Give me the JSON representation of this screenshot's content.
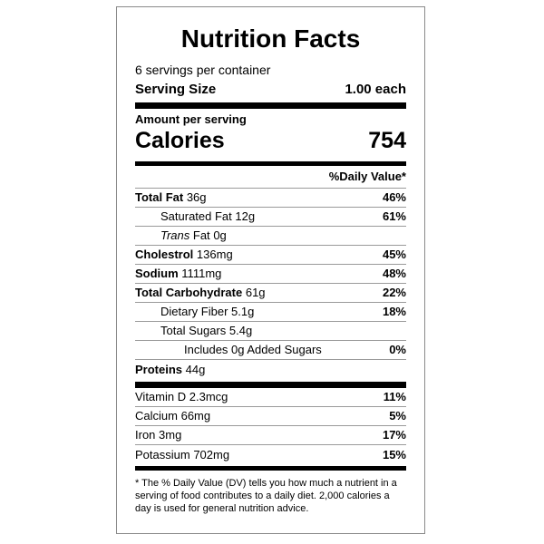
{
  "title": "Nutrition Facts",
  "servings_per_container": "6 servings per container",
  "serving_size": {
    "label": "Serving Size",
    "value": "1.00 each"
  },
  "amount_per_serving": "Amount per serving",
  "calories": {
    "label": "Calories",
    "value": "754"
  },
  "daily_value_header": "%Daily Value*",
  "nutrients": [
    {
      "name": "Total Fat",
      "amount": "36g",
      "dv": "46%"
    },
    {
      "name": "Saturated Fat",
      "amount": "12g",
      "dv": "61%"
    },
    {
      "name_italic": "Trans",
      "name": "Fat",
      "amount": "0g",
      "dv": ""
    },
    {
      "name": "Cholestrol",
      "amount": "136mg",
      "dv": "45%"
    },
    {
      "name": "Sodium",
      "amount": "1111mg",
      "dv": "48%"
    },
    {
      "name": "Total Carbohydrate",
      "amount": "61g",
      "dv": "22%"
    },
    {
      "name": "Dietary Fiber",
      "amount": "5.1g",
      "dv": "18%"
    },
    {
      "name": "Total Sugars",
      "amount": "5.4g",
      "dv": ""
    },
    {
      "name": "Includes 0g Added Sugars",
      "amount": "",
      "dv": "0%"
    },
    {
      "name": "Proteins",
      "amount": "44g",
      "dv": ""
    }
  ],
  "vitamins": [
    {
      "name": "Vitamin D",
      "amount": "2.3mcg",
      "dv": "11%"
    },
    {
      "name": "Calcium",
      "amount": "66mg",
      "dv": "5%"
    },
    {
      "name": "Iron",
      "amount": "3mg",
      "dv": "17%"
    },
    {
      "name": "Potassium",
      "amount": "702mg",
      "dv": "15%"
    }
  ],
  "footnote": "* The % Daily Value (DV) tells you how much a nutrient in a serving of food contributes to a daily diet. 2,000 calories a day is used for general nutrition advice."
}
